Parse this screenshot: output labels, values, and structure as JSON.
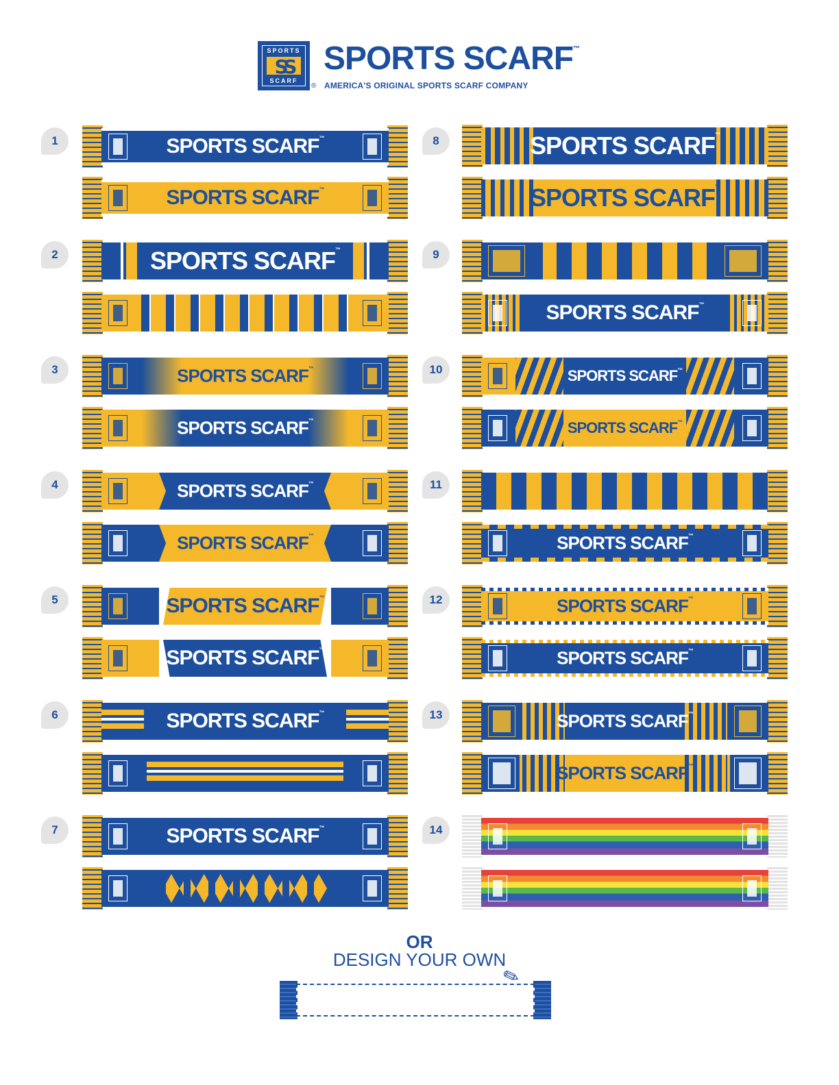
{
  "header": {
    "logo_top": "SPORTS",
    "logo_mark": "SS",
    "logo_bottom": "SCARF",
    "registered": "®",
    "title": "SPORTS SCARF",
    "tm": "™",
    "tagline": "AMERICA'S ORIGINAL SPORTS SCARF COMPANY"
  },
  "designs": [
    {
      "number": "1"
    },
    {
      "number": "2"
    },
    {
      "number": "3"
    },
    {
      "number": "4"
    },
    {
      "number": "5"
    },
    {
      "number": "6"
    },
    {
      "number": "7"
    },
    {
      "number": "8"
    },
    {
      "number": "9"
    },
    {
      "number": "10"
    },
    {
      "number": "11"
    },
    {
      "number": "12"
    },
    {
      "number": "13"
    },
    {
      "number": "14"
    }
  ],
  "scarf_text": "SPORTS SCARF",
  "tm": "™",
  "footer": {
    "or": "OR",
    "design_your_own": "DESIGN YOUR OWN",
    "pencil_icon": "pencil-icon"
  },
  "colors": {
    "blue": "#1d4f9e",
    "gold": "#f5b82a",
    "gray_badge": "#e4e4e4"
  }
}
